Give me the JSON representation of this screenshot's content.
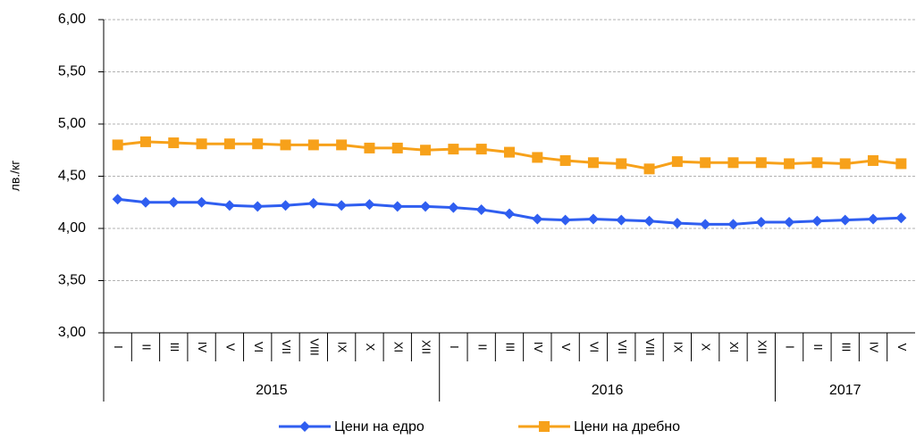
{
  "chart_data": {
    "type": "line",
    "y_label": "лв./кг",
    "categories": [
      "I",
      "II",
      "III",
      "IV",
      "V",
      "VI",
      "VII",
      "VIII",
      "IX",
      "X",
      "XI",
      "XII",
      "I",
      "II",
      "III",
      "IV",
      "V",
      "VI",
      "VII",
      "VIII",
      "IX",
      "X",
      "XI",
      "XII",
      "I",
      "II",
      "III",
      "IV",
      "V"
    ],
    "years": [
      "2015",
      "2016",
      "2017"
    ],
    "series": [
      {
        "name": "Цени на едро",
        "color": "#2f5ef0",
        "marker": "diamond",
        "values": [
          4.28,
          4.25,
          4.25,
          4.25,
          4.22,
          4.21,
          4.22,
          4.24,
          4.22,
          4.23,
          4.21,
          4.21,
          4.2,
          4.18,
          4.14,
          4.09,
          4.08,
          4.09,
          4.08,
          4.07,
          4.05,
          4.04,
          4.04,
          4.06,
          4.06,
          4.07,
          4.08,
          4.09,
          4.1
        ]
      },
      {
        "name": "Цени на дребно",
        "color": "#f7a11a",
        "marker": "square",
        "values": [
          4.8,
          4.83,
          4.82,
          4.81,
          4.81,
          4.81,
          4.8,
          4.8,
          4.8,
          4.77,
          4.77,
          4.75,
          4.76,
          4.76,
          4.73,
          4.68,
          4.65,
          4.63,
          4.62,
          4.57,
          4.64,
          4.63,
          4.63,
          4.63,
          4.62,
          4.63,
          4.62,
          4.65,
          4.62
        ]
      }
    ],
    "ylim": [
      3,
      6
    ],
    "yticks": [
      {
        "value": 3,
        "label": "3,00"
      },
      {
        "value": 3.5,
        "label": "3,50"
      },
      {
        "value": 4,
        "label": "4,00"
      },
      {
        "value": 4.5,
        "label": "4,50"
      },
      {
        "value": 5,
        "label": "5,00"
      },
      {
        "value": 5.5,
        "label": "5,50"
      },
      {
        "value": 6,
        "label": "6,00"
      }
    ],
    "grid": true,
    "legend": "bottom"
  }
}
